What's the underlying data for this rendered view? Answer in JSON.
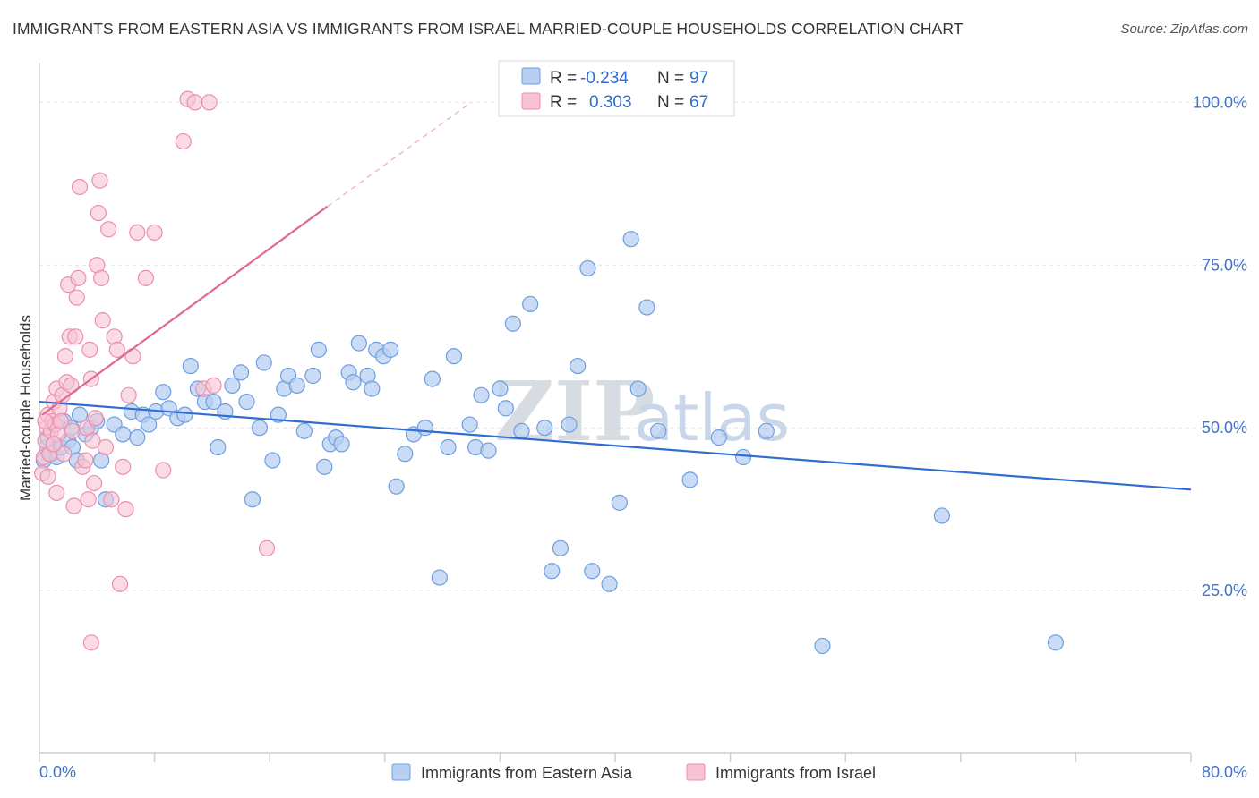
{
  "title": "IMMIGRANTS FROM EASTERN ASIA VS IMMIGRANTS FROM ISRAEL MARRIED-COUPLE HOUSEHOLDS CORRELATION CHART",
  "source": "Source: ZipAtlas.com",
  "watermark": {
    "part1": "ZIP",
    "part2": "atlas"
  },
  "legend": {
    "r_label": "R =",
    "n_label": "N =",
    "rows": [
      {
        "r": "-0.234",
        "n": "97"
      },
      {
        "r": "0.303",
        "n": "67"
      }
    ]
  },
  "colors": {
    "blue_fill": "#b7cff2",
    "blue_stroke": "#6e9ee0",
    "blue_line": "#2f6dd0",
    "pink_fill": "#f7c3d3",
    "pink_stroke": "#ea8fad",
    "pink_line": "#e06892",
    "tick_text": "#4472c4",
    "grid": "#e2e2e2"
  },
  "chart_data": {
    "type": "scatter",
    "title": "IMMIGRANTS FROM EASTERN ASIA VS IMMIGRANTS FROM ISRAEL MARRIED-COUPLE HOUSEHOLDS CORRELATION CHART",
    "xlabel": "",
    "ylabel": "Married-couple Households",
    "xlim": [
      0,
      80
    ],
    "ylim": [
      0,
      105
    ],
    "x_tick_labels": [
      "0.0%",
      "80.0%"
    ],
    "y_ticks": [
      25,
      50,
      75,
      100
    ],
    "y_tick_labels": [
      "25.0%",
      "50.0%",
      "75.0%",
      "100.0%"
    ],
    "grid": true,
    "legend_position": "top-center",
    "series": [
      {
        "name": "Immigrants from Eastern Asia",
        "r": -0.234,
        "n": 97,
        "trend": {
          "x": [
            0,
            80
          ],
          "y": [
            54.0,
            40.5
          ]
        },
        "points": [
          [
            0.3,
            45
          ],
          [
            0.5,
            47
          ],
          [
            0.6,
            48.5
          ],
          [
            0.8,
            46
          ],
          [
            1.0,
            47.5
          ],
          [
            1.2,
            45.5
          ],
          [
            1.5,
            47
          ],
          [
            1.7,
            51
          ],
          [
            2.0,
            48
          ],
          [
            2.2,
            50
          ],
          [
            2.3,
            47
          ],
          [
            2.6,
            45
          ],
          [
            2.8,
            52
          ],
          [
            3.2,
            49
          ],
          [
            3.6,
            50
          ],
          [
            4.0,
            51
          ],
          [
            4.3,
            45
          ],
          [
            4.6,
            39
          ],
          [
            5.2,
            50.5
          ],
          [
            5.8,
            49
          ],
          [
            6.4,
            52.5
          ],
          [
            6.8,
            48.5
          ],
          [
            7.2,
            52
          ],
          [
            7.6,
            50.5
          ],
          [
            8.1,
            52.5
          ],
          [
            8.6,
            55.5
          ],
          [
            9.0,
            53
          ],
          [
            9.6,
            51.5
          ],
          [
            10.1,
            52
          ],
          [
            10.5,
            59.5
          ],
          [
            11.0,
            56
          ],
          [
            11.5,
            54
          ],
          [
            12.1,
            54
          ],
          [
            12.4,
            47
          ],
          [
            12.9,
            52.5
          ],
          [
            13.4,
            56.5
          ],
          [
            14.0,
            58.5
          ],
          [
            14.4,
            54
          ],
          [
            14.8,
            39
          ],
          [
            15.3,
            50
          ],
          [
            15.6,
            60
          ],
          [
            16.2,
            45
          ],
          [
            16.6,
            52
          ],
          [
            17.0,
            56
          ],
          [
            17.3,
            58
          ],
          [
            17.9,
            56.5
          ],
          [
            18.4,
            49.5
          ],
          [
            19.0,
            58
          ],
          [
            19.4,
            62
          ],
          [
            19.8,
            44
          ],
          [
            20.2,
            47.5
          ],
          [
            20.6,
            48.5
          ],
          [
            21.0,
            47.5
          ],
          [
            21.5,
            58.5
          ],
          [
            21.8,
            57
          ],
          [
            22.2,
            63
          ],
          [
            22.8,
            58
          ],
          [
            23.1,
            56
          ],
          [
            23.4,
            62
          ],
          [
            23.9,
            61
          ],
          [
            24.4,
            62
          ],
          [
            24.8,
            41
          ],
          [
            25.4,
            46
          ],
          [
            26.0,
            49
          ],
          [
            26.8,
            50
          ],
          [
            27.3,
            57.5
          ],
          [
            27.8,
            27
          ],
          [
            28.4,
            47
          ],
          [
            28.8,
            61
          ],
          [
            29.9,
            50.5
          ],
          [
            30.3,
            47
          ],
          [
            30.7,
            55
          ],
          [
            31.2,
            46.5
          ],
          [
            32.0,
            56
          ],
          [
            32.4,
            53
          ],
          [
            32.9,
            66
          ],
          [
            33.5,
            49.5
          ],
          [
            34.1,
            69
          ],
          [
            35.1,
            50
          ],
          [
            35.6,
            28
          ],
          [
            36.2,
            31.5
          ],
          [
            36.8,
            50.5
          ],
          [
            37.4,
            59.5
          ],
          [
            38.1,
            74.5
          ],
          [
            38.4,
            28
          ],
          [
            39.6,
            26
          ],
          [
            40.3,
            38.5
          ],
          [
            41.1,
            79
          ],
          [
            41.6,
            56
          ],
          [
            42.2,
            68.5
          ],
          [
            43.0,
            49.5
          ],
          [
            45.2,
            42
          ],
          [
            47.2,
            48.5
          ],
          [
            48.9,
            45.5
          ],
          [
            50.5,
            49.5
          ],
          [
            54.4,
            16.5
          ],
          [
            62.7,
            36.5
          ],
          [
            70.6,
            17
          ]
        ]
      },
      {
        "name": "Immigrants from Israel",
        "r": 0.303,
        "n": 67,
        "trend": {
          "x": [
            0.2,
            20
          ],
          "y": [
            52.0,
            84.0
          ]
        },
        "trend_extension": {
          "x": [
            20,
            30
          ],
          "y": [
            84.0,
            100.0
          ]
        },
        "points": [
          [
            0.2,
            43
          ],
          [
            0.3,
            45.5
          ],
          [
            0.4,
            48
          ],
          [
            0.5,
            50
          ],
          [
            0.6,
            52
          ],
          [
            0.7,
            46
          ],
          [
            0.8,
            49.5
          ],
          [
            0.9,
            51
          ],
          [
            1.0,
            54
          ],
          [
            1.1,
            50.5
          ],
          [
            1.2,
            56
          ],
          [
            1.3,
            49
          ],
          [
            1.4,
            53
          ],
          [
            1.5,
            51
          ],
          [
            1.6,
            55
          ],
          [
            1.7,
            46
          ],
          [
            1.8,
            61
          ],
          [
            1.9,
            57
          ],
          [
            2.0,
            72
          ],
          [
            2.1,
            64
          ],
          [
            2.2,
            56.5
          ],
          [
            2.3,
            49.5
          ],
          [
            2.4,
            38
          ],
          [
            2.5,
            64
          ],
          [
            2.6,
            70
          ],
          [
            2.7,
            73
          ],
          [
            2.8,
            87
          ],
          [
            3.0,
            44
          ],
          [
            3.2,
            45
          ],
          [
            3.3,
            50
          ],
          [
            3.4,
            39
          ],
          [
            3.5,
            62
          ],
          [
            3.6,
            57.5
          ],
          [
            3.7,
            48
          ],
          [
            3.8,
            41.5
          ],
          [
            3.9,
            51.5
          ],
          [
            4.0,
            75
          ],
          [
            4.1,
            83
          ],
          [
            4.2,
            88
          ],
          [
            4.3,
            73
          ],
          [
            4.4,
            66.5
          ],
          [
            4.6,
            47
          ],
          [
            4.8,
            80.5
          ],
          [
            5.0,
            39
          ],
          [
            5.2,
            64
          ],
          [
            5.4,
            62
          ],
          [
            5.6,
            26
          ],
          [
            5.8,
            44
          ],
          [
            6.0,
            37.5
          ],
          [
            6.2,
            55
          ],
          [
            6.5,
            61
          ],
          [
            6.8,
            80
          ],
          [
            7.4,
            73
          ],
          [
            8.0,
            80
          ],
          [
            8.6,
            43.5
          ],
          [
            10.0,
            94
          ],
          [
            10.3,
            100.5
          ],
          [
            10.8,
            100
          ],
          [
            11.4,
            56
          ],
          [
            11.8,
            100
          ],
          [
            12.1,
            56.5
          ],
          [
            15.8,
            31.5
          ],
          [
            0.6,
            42.5
          ],
          [
            1.0,
            47.5
          ],
          [
            0.4,
            51
          ],
          [
            3.6,
            17
          ],
          [
            1.2,
            40
          ]
        ]
      }
    ]
  }
}
